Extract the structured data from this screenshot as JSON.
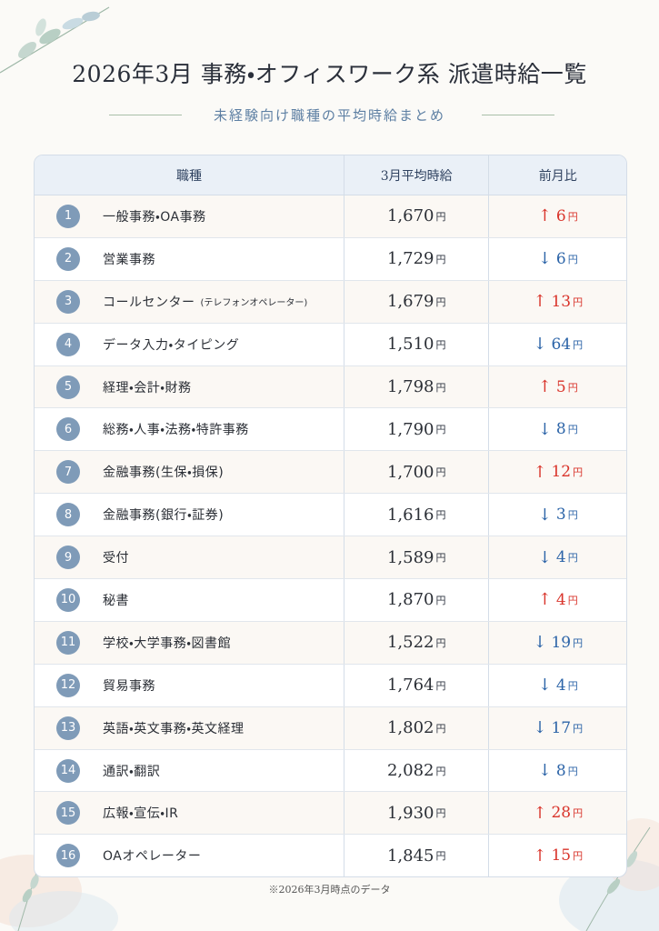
{
  "header": {
    "title": "2026年3月 事務・オフィスワーク系 派遣時給一覧",
    "subtitle": "未経験向け職種の平均時給まとめ"
  },
  "table": {
    "columns": [
      "職種",
      "3月平均時給",
      "前月比"
    ],
    "unit": "円",
    "arrows": {
      "up": "↑",
      "down": "↓"
    },
    "rows": [
      {
        "no": 1,
        "job": "一般事務・OA事務",
        "wage": "1,670",
        "trend": "up",
        "change": 6
      },
      {
        "no": 2,
        "job": "営業事務",
        "wage": "1,729",
        "trend": "down",
        "change": 6
      },
      {
        "no": 3,
        "job": "コールセンター",
        "job_note": "(テレフォンオペレーター)",
        "wage": "1,679",
        "trend": "up",
        "change": 13
      },
      {
        "no": 4,
        "job": "データ入力・タイピング",
        "wage": "1,510",
        "trend": "down",
        "change": 64
      },
      {
        "no": 5,
        "job": "経理・会計・財務",
        "wage": "1,798",
        "trend": "up",
        "change": 5
      },
      {
        "no": 6,
        "job": "総務・人事・法務・特許事務",
        "wage": "1,790",
        "trend": "down",
        "change": 8
      },
      {
        "no": 7,
        "job": "金融事務(生保・損保)",
        "wage": "1,700",
        "trend": "up",
        "change": 12
      },
      {
        "no": 8,
        "job": "金融事務(銀行・証券)",
        "wage": "1,616",
        "trend": "down",
        "change": 3
      },
      {
        "no": 9,
        "job": "受付",
        "wage": "1,589",
        "trend": "down",
        "change": 4
      },
      {
        "no": 10,
        "job": "秘書",
        "wage": "1,870",
        "trend": "up",
        "change": 4
      },
      {
        "no": 11,
        "job": "学校・大学事務・図書館",
        "wage": "1,522",
        "trend": "down",
        "change": 19
      },
      {
        "no": 12,
        "job": "貿易事務",
        "wage": "1,764",
        "trend": "down",
        "change": 4
      },
      {
        "no": 13,
        "job": "英語・英文事務・英文経理",
        "wage": "1,802",
        "trend": "down",
        "change": 17
      },
      {
        "no": 14,
        "job": "通訳・翻訳",
        "wage": "2,082",
        "trend": "down",
        "change": 8
      },
      {
        "no": 15,
        "job": "広報・宣伝・IR",
        "wage": "1,930",
        "trend": "up",
        "change": 28
      },
      {
        "no": 16,
        "job": "OAオペレーター",
        "wage": "1,845",
        "trend": "up",
        "change": 15
      }
    ]
  },
  "footnote": "※2026年3月時点のデータ"
}
